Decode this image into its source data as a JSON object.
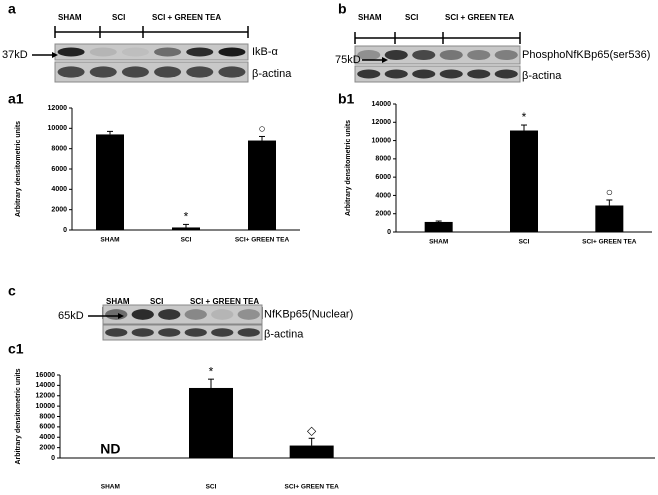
{
  "blots": [
    {
      "panel": "a",
      "headers": [
        "SHAM",
        "SCI",
        "SCI + GREEN TEA"
      ],
      "marker": "37kD",
      "labels": [
        "IkB-α",
        "β-actina"
      ]
    },
    {
      "panel": "b",
      "headers": [
        "SHAM",
        "SCI",
        "SCI + GREEN TEA"
      ],
      "marker": "75kD",
      "labels": [
        "PhosphoNfKBp65(ser536)",
        "β-actina"
      ]
    },
    {
      "panel": "c",
      "headers": [
        "SHAM",
        "SCI",
        "SCI + GREEN TEA"
      ],
      "marker": "65kD",
      "labels": [
        "NfKBp65(Nuclear)",
        "β-actina"
      ]
    }
  ],
  "chart_data": [
    {
      "type": "bar",
      "panel": "a1",
      "y_label": "Arbitrary densitometric units",
      "categories": [
        "SHAM",
        "SCI",
        "SCI+ GREEN TEA"
      ],
      "values": [
        9400,
        250,
        8800
      ],
      "errors": [
        300,
        300,
        400
      ],
      "annotations": [
        null,
        "*",
        "○"
      ],
      "color": "#000000",
      "ylim": [
        0,
        12000
      ],
      "yticks": [
        0,
        2000,
        4000,
        6000,
        8000,
        10000,
        12000
      ]
    },
    {
      "type": "bar",
      "panel": "b1",
      "y_label": "Arbitrary densitometric units",
      "categories": [
        "SHAM",
        "SCI",
        "SCI+ GREEN TEA"
      ],
      "values": [
        1100,
        11100,
        2900
      ],
      "errors": [
        100,
        600,
        600
      ],
      "annotations": [
        null,
        "*",
        "○"
      ],
      "color": "#000000",
      "ylim": [
        0,
        14000
      ],
      "yticks": [
        0,
        2000,
        4000,
        6000,
        8000,
        10000,
        12000,
        14000
      ]
    },
    {
      "type": "bar",
      "panel": "c1",
      "y_label": "Arbitrary densitometric units",
      "categories": [
        "SHAM",
        "SCI",
        "SCI+ GREEN TEA"
      ],
      "values": [
        null,
        13500,
        2400
      ],
      "errors": [
        null,
        1700,
        1400
      ],
      "annotations": [
        "ND",
        "*",
        "◇"
      ],
      "color": "#000000",
      "ylim": [
        0,
        16000
      ],
      "yticks": [
        0,
        2000,
        4000,
        6000,
        8000,
        10000,
        12000,
        14000,
        16000
      ]
    }
  ]
}
